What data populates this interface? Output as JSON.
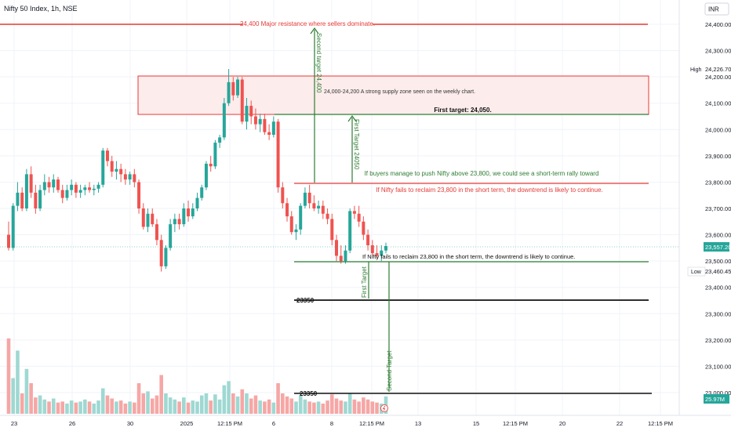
{
  "header": {
    "title": "Nifty 50 Index, 1h, NSE"
  },
  "currency_badge": "INR",
  "price_axis": {
    "ticks": [
      "24,400.00",
      "24,300.00",
      "24,200.00",
      "24,100.00",
      "24,000.00",
      "23,900.00",
      "23,800.00",
      "23,700.00",
      "23,600.00",
      "23,500.00",
      "23,400.00",
      "23,300.00",
      "23,200.00",
      "23,100.00",
      "23,000.00"
    ],
    "high_label": "High",
    "high_value": "24,226.70",
    "last_value": "23,557.20",
    "low_label": "Low",
    "low_value": "23,460.45",
    "volume_value": "25.97M"
  },
  "time_axis": {
    "ticks": [
      "23",
      "26",
      "30",
      "2025",
      "12:15 PM",
      "6",
      "8",
      "12:15 PM",
      "13",
      "15",
      "12:15 PM",
      "20",
      "22",
      "12:15 PM"
    ]
  },
  "annotations": {
    "resistance": "24,400 Major resistance where sellers dominate.",
    "supply_zone": "24,000-24,200  A strong supply zone seen on the weekly chart.",
    "first_target_label": "First target: 24,050.",
    "second_target_vertical": "Second target 24,400",
    "first_target_vertical": "First Target 24050",
    "rally_text": "If buyers manage to push Nifty above 23,800, we could see a short-term rally toward",
    "downtrend_text": "If Nifty fails to reclaim 23,800 in the short term, the downtrend is likely to continue.",
    "downtrend_text_2": "If Nifty fails to reclaim 23,800 in the short term, the downtrend is likely to continue.",
    "level_23350": "23350",
    "level_23350_b": "23350",
    "first_target_down": "First Target",
    "second_target_down": "Second Target"
  },
  "colors": {
    "up": "#26a69a",
    "down": "#ef5350",
    "resistance": "#e53935",
    "target": "#2e7d32",
    "zone_fill": "#fdecec"
  },
  "chart_data": {
    "type": "candlestick",
    "title": "Nifty 50 Index, 1h, NSE",
    "ylim": [
      22990,
      24460
    ],
    "candles": [
      [
        23600,
        23650,
        23540,
        23550
      ],
      [
        23550,
        23720,
        23540,
        23710
      ],
      [
        23710,
        23800,
        23690,
        23760
      ],
      [
        23760,
        23780,
        23690,
        23700
      ],
      [
        23700,
        23850,
        23690,
        23830
      ],
      [
        23830,
        23860,
        23740,
        23760
      ],
      [
        23760,
        23790,
        23680,
        23700
      ],
      [
        23700,
        23790,
        23690,
        23770
      ],
      [
        23770,
        23830,
        23750,
        23800
      ],
      [
        23800,
        23820,
        23760,
        23780
      ],
      [
        23780,
        23830,
        23760,
        23810
      ],
      [
        23810,
        23820,
        23760,
        23770
      ],
      [
        23770,
        23790,
        23720,
        23740
      ],
      [
        23740,
        23790,
        23730,
        23770
      ],
      [
        23770,
        23810,
        23750,
        23790
      ],
      [
        23790,
        23800,
        23740,
        23760
      ],
      [
        23760,
        23790,
        23740,
        23770
      ],
      [
        23770,
        23790,
        23750,
        23780
      ],
      [
        23780,
        23800,
        23760,
        23770
      ],
      [
        23770,
        23790,
        23750,
        23775
      ],
      [
        23775,
        23800,
        23760,
        23790
      ],
      [
        23790,
        23930,
        23780,
        23920
      ],
      [
        23920,
        23930,
        23860,
        23880
      ],
      [
        23880,
        23900,
        23820,
        23840
      ],
      [
        23840,
        23880,
        23810,
        23850
      ],
      [
        23850,
        23870,
        23800,
        23830
      ],
      [
        23830,
        23850,
        23790,
        23810
      ],
      [
        23810,
        23840,
        23790,
        23830
      ],
      [
        23830,
        23850,
        23780,
        23800
      ],
      [
        23800,
        23810,
        23680,
        23700
      ],
      [
        23700,
        23720,
        23620,
        23630
      ],
      [
        23630,
        23700,
        23610,
        23680
      ],
      [
        23680,
        23700,
        23630,
        23640
      ],
      [
        23640,
        23660,
        23560,
        23580
      ],
      [
        23580,
        23600,
        23460,
        23480
      ],
      [
        23480,
        23560,
        23470,
        23550
      ],
      [
        23550,
        23660,
        23540,
        23640
      ],
      [
        23640,
        23680,
        23610,
        23660
      ],
      [
        23660,
        23680,
        23620,
        23640
      ],
      [
        23640,
        23720,
        23630,
        23700
      ],
      [
        23700,
        23730,
        23650,
        23670
      ],
      [
        23670,
        23720,
        23660,
        23700
      ],
      [
        23700,
        23760,
        23690,
        23740
      ],
      [
        23740,
        23790,
        23730,
        23780
      ],
      [
        23780,
        23880,
        23770,
        23870
      ],
      [
        23870,
        23900,
        23840,
        23860
      ],
      [
        23860,
        23960,
        23850,
        23950
      ],
      [
        23950,
        23980,
        23930,
        23970
      ],
      [
        23970,
        24120,
        23960,
        24100
      ],
      [
        24100,
        24230,
        24090,
        24180
      ],
      [
        24180,
        24200,
        24110,
        24130
      ],
      [
        24130,
        24200,
        24120,
        24190
      ],
      [
        24190,
        24200,
        24020,
        24030
      ],
      [
        24030,
        24120,
        24000,
        24090
      ],
      [
        24090,
        24110,
        24020,
        24050
      ],
      [
        24050,
        24080,
        24000,
        24020
      ],
      [
        24020,
        24060,
        23990,
        24040
      ],
      [
        24040,
        24060,
        23980,
        23990
      ],
      [
        23990,
        24020,
        23960,
        23980
      ],
      [
        23980,
        24050,
        23970,
        24030
      ],
      [
        24030,
        24040,
        23760,
        23780
      ],
      [
        23780,
        23800,
        23700,
        23720
      ],
      [
        23720,
        23740,
        23650,
        23670
      ],
      [
        23670,
        23690,
        23600,
        23610
      ],
      [
        23610,
        23640,
        23580,
        23620
      ],
      [
        23620,
        23720,
        23600,
        23710
      ],
      [
        23710,
        23780,
        23700,
        23760
      ],
      [
        23760,
        23790,
        23700,
        23720
      ],
      [
        23720,
        23750,
        23690,
        23700
      ],
      [
        23700,
        23730,
        23680,
        23710
      ],
      [
        23710,
        23730,
        23660,
        23680
      ],
      [
        23680,
        23700,
        23640,
        23660
      ],
      [
        23660,
        23680,
        23560,
        23580
      ],
      [
        23580,
        23600,
        23500,
        23520
      ],
      [
        23520,
        23560,
        23490,
        23500
      ],
      [
        23500,
        23560,
        23490,
        23540
      ],
      [
        23540,
        23700,
        23530,
        23690
      ],
      [
        23690,
        23710,
        23660,
        23680
      ],
      [
        23680,
        23710,
        23630,
        23650
      ],
      [
        23650,
        23670,
        23580,
        23600
      ],
      [
        23600,
        23620,
        23540,
        23560
      ],
      [
        23560,
        23580,
        23520,
        23530
      ],
      [
        23530,
        23560,
        23510,
        23520
      ],
      [
        23520,
        23560,
        23500,
        23540
      ],
      [
        23540,
        23570,
        23530,
        23557
      ]
    ],
    "volume_heights": [
      0.74,
      0.35,
      0.62,
      0.2,
      0.44,
      0.3,
      0.16,
      0.18,
      0.14,
      0.12,
      0.15,
      0.11,
      0.12,
      0.1,
      0.13,
      0.11,
      0.12,
      0.14,
      0.12,
      0.1,
      0.13,
      0.25,
      0.18,
      0.15,
      0.12,
      0.13,
      0.1,
      0.12,
      0.11,
      0.3,
      0.2,
      0.22,
      0.15,
      0.18,
      0.38,
      0.2,
      0.16,
      0.14,
      0.12,
      0.16,
      0.11,
      0.13,
      0.12,
      0.18,
      0.2,
      0.13,
      0.19,
      0.14,
      0.28,
      0.32,
      0.2,
      0.17,
      0.24,
      0.2,
      0.15,
      0.18,
      0.13,
      0.12,
      0.14,
      0.11,
      0.3,
      0.2,
      0.17,
      0.15,
      0.12,
      0.18,
      0.14,
      0.12,
      0.11,
      0.12,
      0.1,
      0.13,
      0.19,
      0.15,
      0.13,
      0.12,
      0.2,
      0.14,
      0.12,
      0.16,
      0.14,
      0.12,
      0.11,
      0.1,
      0.17
    ]
  }
}
